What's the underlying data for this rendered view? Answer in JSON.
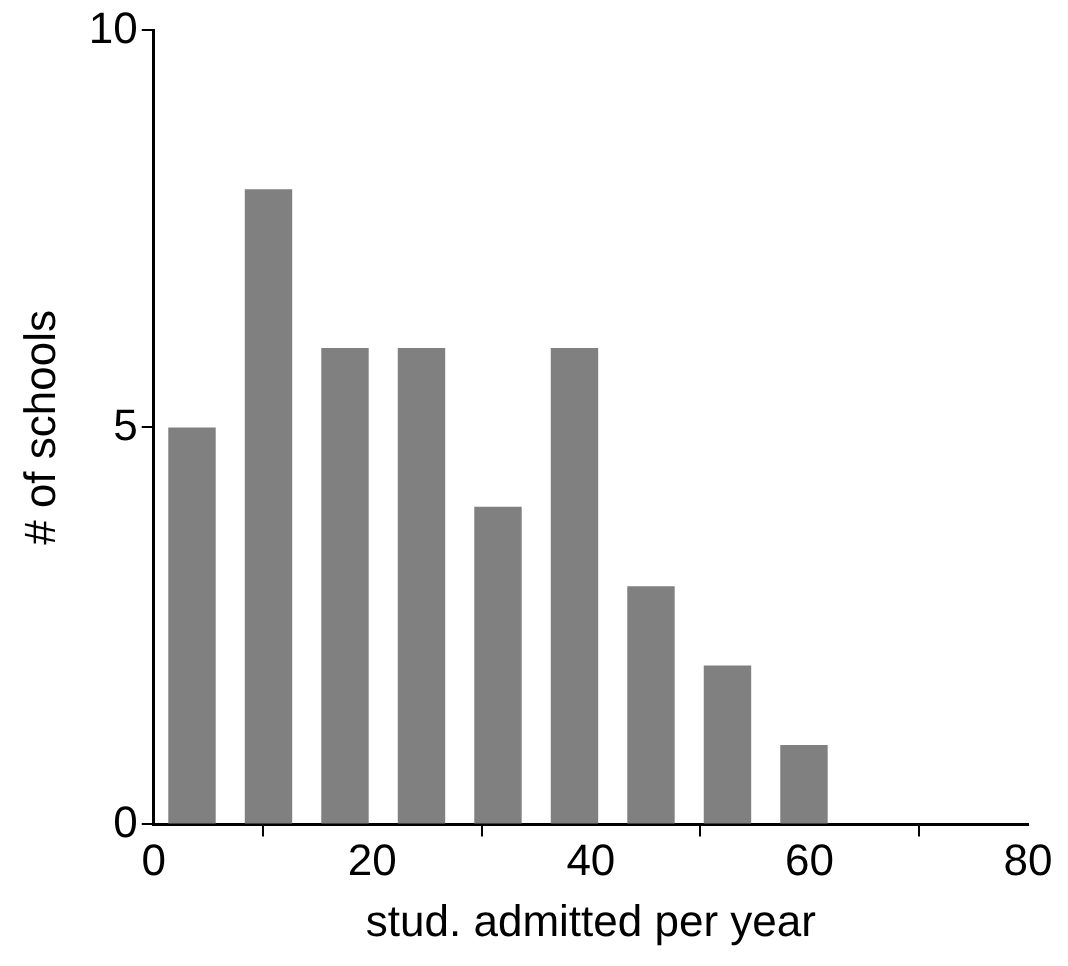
{
  "chart_data": {
    "type": "histogram",
    "xlabel": "stud. admitted per year",
    "ylabel": "# of schools",
    "bins": [
      0,
      7,
      14,
      21,
      28,
      35,
      42,
      49,
      56,
      63
    ],
    "values": [
      5,
      8,
      6,
      6,
      4,
      6,
      3,
      2,
      1
    ],
    "color": "#808080",
    "xlim": [
      0,
      80
    ],
    "xticks": [
      0,
      20,
      40,
      60,
      80
    ],
    "ylim": [
      0,
      10
    ],
    "yticks": [
      0,
      5,
      10
    ],
    "grid": false,
    "legend": false
  }
}
